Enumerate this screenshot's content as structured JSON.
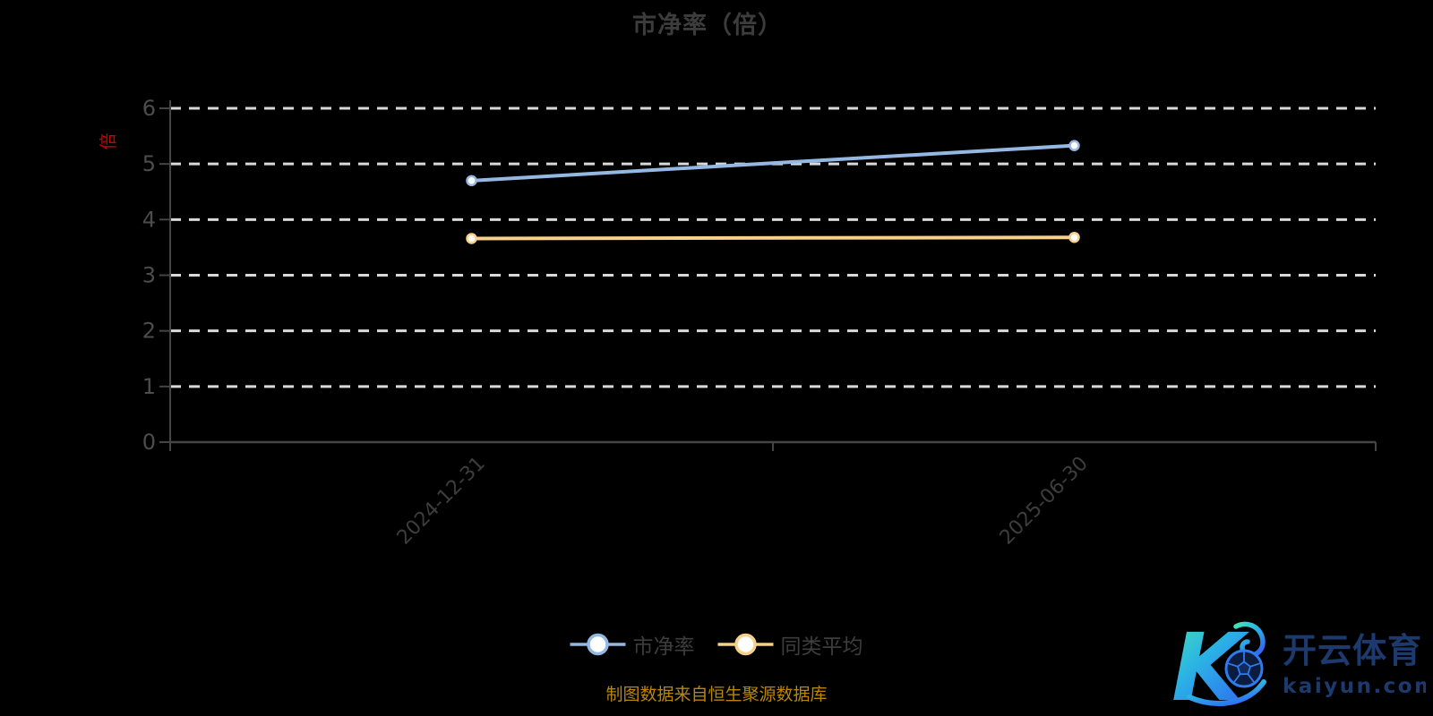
{
  "title": "市净率（倍）",
  "caption": "制图数据来自恒生聚源数据库",
  "colors": {
    "background": "#000000",
    "title_text": "#3c3c3c",
    "axis_line": "#454545",
    "axis_label": "#4c4c4c",
    "x_label": "#3d3d3d",
    "gridline": "#d9d9d9",
    "y_name_red": "#cc0000",
    "caption_text": "#b8860b",
    "series_pbr_blue": "#95b8e2",
    "series_avg_yellow": "#f7d08a",
    "logo_navy": "#1d3a6e",
    "logo_gradient_start": "#45e3b5",
    "logo_gradient_end": "#2f6df2"
  },
  "legend": [
    {
      "label": "市净率",
      "color": "#95b8e2"
    },
    {
      "label": "同类平均",
      "color": "#f7d08a"
    }
  ],
  "watermark": {
    "brand": "开云体育",
    "domain": "kaiyun.com"
  },
  "chart_data": {
    "type": "line",
    "categories": [
      "2024-12-31",
      "2025-06-30"
    ],
    "series": [
      {
        "name": "市净率",
        "values": [
          4.7,
          5.33
        ],
        "color": "#95b8e2"
      },
      {
        "name": "同类平均",
        "values": [
          3.66,
          3.68
        ],
        "color": "#f7d08a"
      }
    ],
    "title": "市净率（倍）",
    "xlabel": "",
    "ylabel": "倍",
    "ylim": [
      0,
      6
    ],
    "y_ticks": [
      0,
      1,
      2,
      3,
      4,
      5,
      6
    ],
    "grid": "horizontal-dashed",
    "legend_position": "bottom-center"
  }
}
